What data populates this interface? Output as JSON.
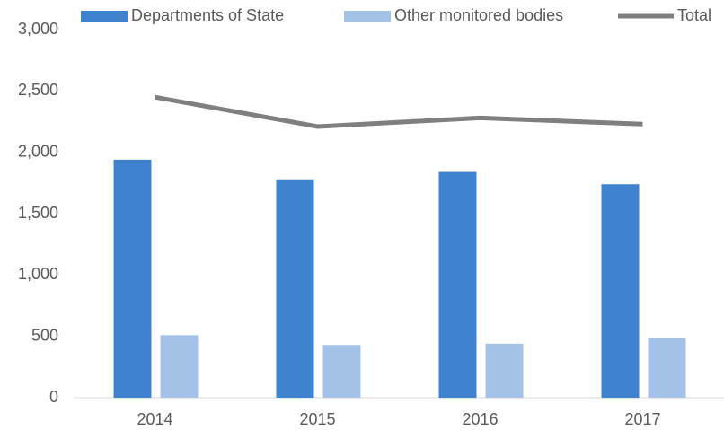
{
  "chart_data": {
    "type": "bar",
    "categories": [
      "2014",
      "2015",
      "2016",
      "2017"
    ],
    "series": [
      {
        "name": "Departments of State",
        "color": "#3f83cf",
        "values": [
          1940,
          1780,
          1840,
          1740
        ]
      },
      {
        "name": "Other monitored bodies",
        "color": "#a4c2e8",
        "values": [
          510,
          430,
          440,
          490
        ]
      },
      {
        "name": "Total",
        "color": "#7f7f7f",
        "type": "line",
        "values": [
          2450,
          2210,
          2280,
          2230
        ]
      }
    ],
    "ylim": [
      0,
      3000
    ],
    "yticks": [
      0,
      500,
      {
        "value": 1000,
        "label": "1,000"
      },
      {
        "value": 1500,
        "label": "1,500"
      },
      {
        "value": 2000,
        "label": "2,000"
      },
      {
        "value": 2500,
        "label": "2,500"
      },
      {
        "value": 3000,
        "label": "3,000"
      }
    ],
    "grid": false,
    "legend": "top"
  }
}
